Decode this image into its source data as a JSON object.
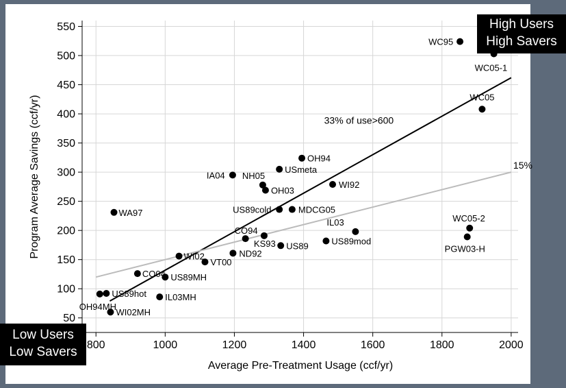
{
  "corner_labels": {
    "high": [
      "High Users",
      "High Savers"
    ],
    "low": [
      "Low Users",
      "Low Savers"
    ]
  },
  "colors": {
    "background": "#5d6a7a",
    "panel": "#ffffff",
    "points": "#000000",
    "fit_line": "#000000",
    "reference_line": "#bbbbbb",
    "grid": "#d6d6d6"
  },
  "chart_data": {
    "type": "scatter",
    "xlabel": "Average Pre-Treatment Usage (ccf/yr)",
    "ylabel": "Program Average Savings (ccf/yr)",
    "xlim": [
      760,
      2020
    ],
    "ylim": [
      25,
      560
    ],
    "xticks": [
      800,
      1000,
      1200,
      1400,
      1600,
      1800,
      2000
    ],
    "yticks": [
      50,
      100,
      150,
      200,
      250,
      300,
      350,
      400,
      450,
      500,
      550
    ],
    "grid": true,
    "points": [
      {
        "label": "WC95",
        "x": 1852,
        "y": 524
      },
      {
        "label": "WC05-1",
        "x": 1950,
        "y": 503
      },
      {
        "label": "WC05",
        "x": 1916,
        "y": 408
      },
      {
        "label": "OH94",
        "x": 1395,
        "y": 324
      },
      {
        "label": "USmeta",
        "x": 1330,
        "y": 305
      },
      {
        "label": "IA04",
        "x": 1195,
        "y": 295
      },
      {
        "label": "NH05",
        "x": 1282,
        "y": 278
      },
      {
        "label": "OH03",
        "x": 1290,
        "y": 269
      },
      {
        "label": "WI92",
        "x": 1484,
        "y": 279
      },
      {
        "label": "WA97",
        "x": 852,
        "y": 231
      },
      {
        "label": "US89cold",
        "x": 1330,
        "y": 236
      },
      {
        "label": "MDCG05",
        "x": 1367,
        "y": 236
      },
      {
        "label": "IL03",
        "x": 1550,
        "y": 198
      },
      {
        "label": "CO94",
        "x": 1232,
        "y": 186
      },
      {
        "label": "KS93",
        "x": 1286,
        "y": 191
      },
      {
        "label": "US89",
        "x": 1334,
        "y": 174
      },
      {
        "label": "US89mod",
        "x": 1465,
        "y": 182
      },
      {
        "label": "ND92",
        "x": 1196,
        "y": 161
      },
      {
        "label": "WC05-2",
        "x": 1880,
        "y": 204
      },
      {
        "label": "PGW03-H",
        "x": 1873,
        "y": 189
      },
      {
        "label": "WI02",
        "x": 1040,
        "y": 156
      },
      {
        "label": "VT00",
        "x": 1115,
        "y": 146
      },
      {
        "label": "CO04",
        "x": 920,
        "y": 126
      },
      {
        "label": "US89MH",
        "x": 1000,
        "y": 120
      },
      {
        "label": "US89hot",
        "x": 830,
        "y": 92
      },
      {
        "label": "OH94MH",
        "x": 811,
        "y": 91
      },
      {
        "label": "IL03MH",
        "x": 984,
        "y": 86
      },
      {
        "label": "WI02MH",
        "x": 842,
        "y": 60
      }
    ],
    "lines": [
      {
        "name": "33% of use>600",
        "x": [
          840,
          2000
        ],
        "y": [
          79,
          462
        ]
      },
      {
        "name": "15%",
        "x": [
          800,
          2000
        ],
        "y": [
          120,
          300
        ]
      }
    ]
  }
}
